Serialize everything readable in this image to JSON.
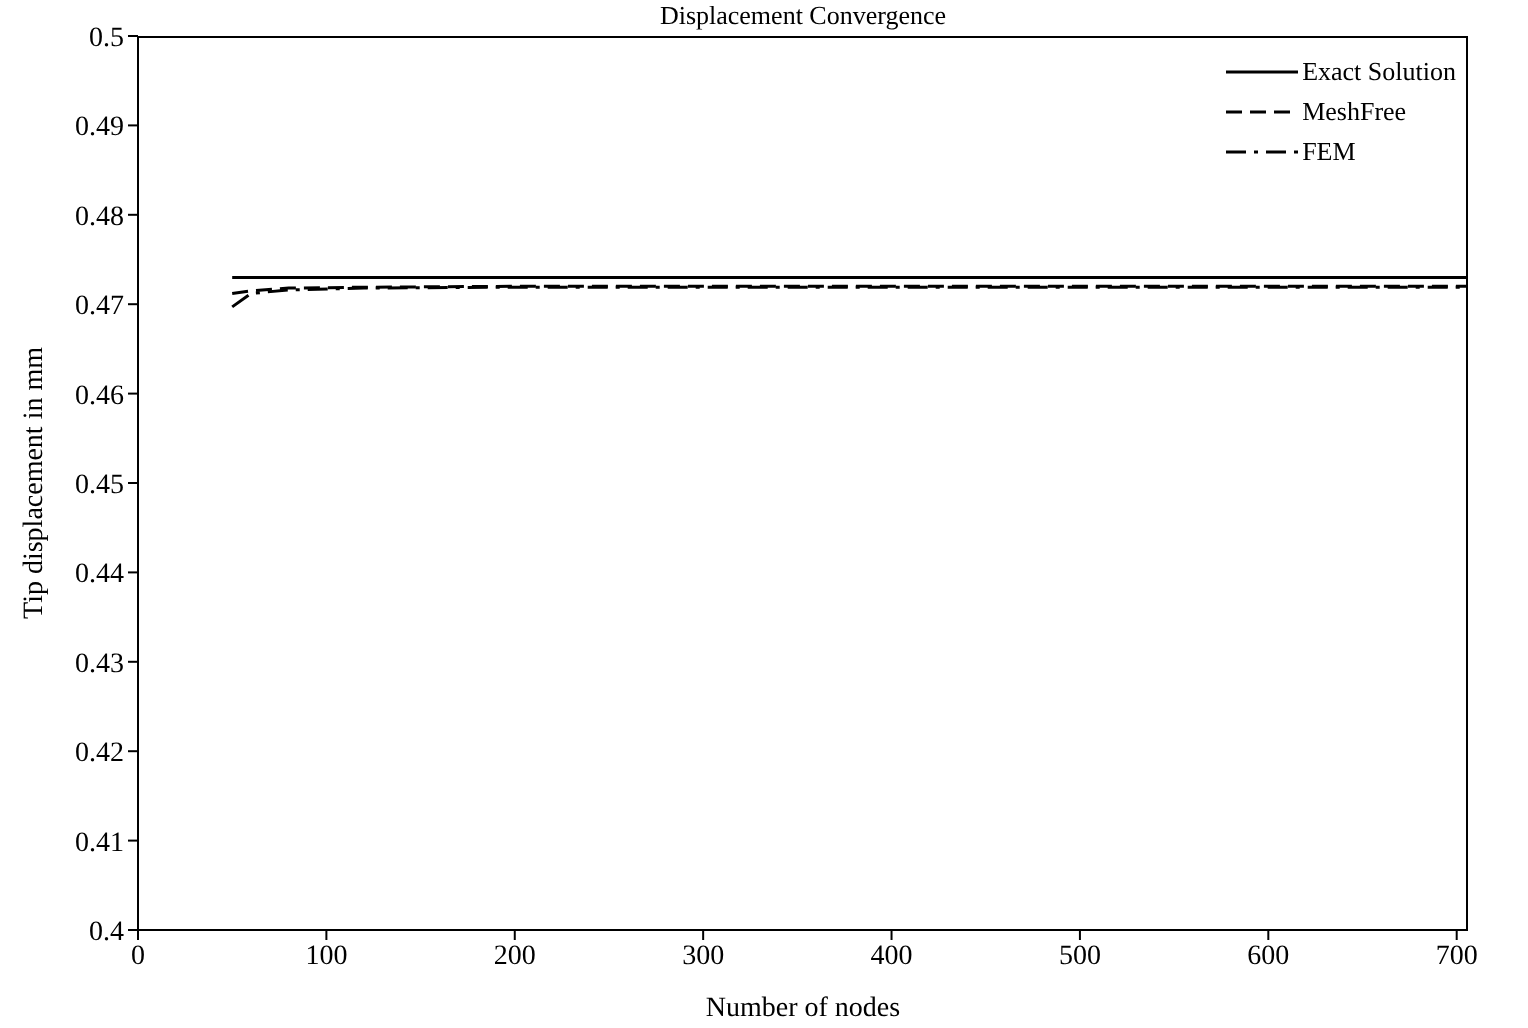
{
  "chart_data": {
    "type": "line",
    "title": "Displacement Convergence",
    "xlabel": "Number of nodes",
    "ylabel": "Tip displacement in mm",
    "xlim": [
      0,
      706
    ],
    "xticks": [
      0,
      100,
      200,
      300,
      400,
      500,
      600,
      700
    ],
    "ylim": [
      0.4,
      0.5
    ],
    "yticks": [
      0.4,
      0.41,
      0.42,
      0.43,
      0.44,
      0.45,
      0.46,
      0.47,
      0.48,
      0.49,
      0.5
    ],
    "series": [
      {
        "name": "Exact Solution",
        "color": "#000000",
        "line_style": "solid",
        "x": [
          50,
          706
        ],
        "values": [
          0.473,
          0.473
        ]
      },
      {
        "name": "MeshFree",
        "color": "#000000",
        "line_style": "dashed",
        "x": [
          50,
          60,
          80,
          120,
          200,
          706
        ],
        "values": [
          0.4712,
          0.4715,
          0.4718,
          0.4719,
          0.472,
          0.472
        ]
      },
      {
        "name": "FEM",
        "color": "#000000",
        "line_style": "dashdot",
        "x": [
          50,
          60,
          80,
          120,
          200,
          706
        ],
        "values": [
          0.4697,
          0.4712,
          0.4716,
          0.4718,
          0.4719,
          0.4719
        ]
      }
    ],
    "grid": false,
    "legend": "top right",
    "marker": "none"
  }
}
